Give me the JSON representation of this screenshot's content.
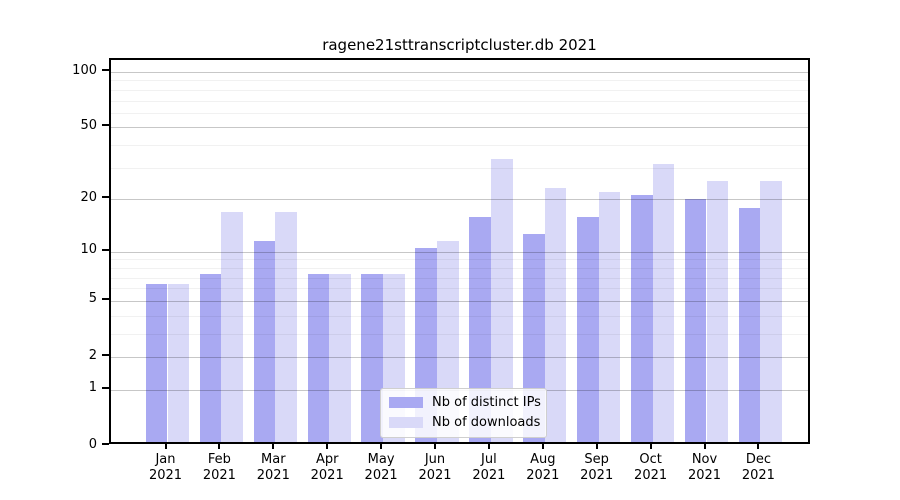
{
  "title": "ragene21sttranscriptcluster.db 2021",
  "chart_data": {
    "type": "bar",
    "title": "ragene21sttranscriptcluster.db 2021",
    "categories": [
      "Jan",
      "Feb",
      "Mar",
      "Apr",
      "May",
      "Jun",
      "Jul",
      "Aug",
      "Sep",
      "Oct",
      "Nov",
      "Dec"
    ],
    "x_year": "2021",
    "series": [
      {
        "name": "Nb of distinct IPs",
        "color": "#a9a9f2",
        "values": [
          6,
          7,
          11,
          7,
          7,
          10,
          15,
          12,
          15,
          20,
          19,
          17
        ]
      },
      {
        "name": "Nb of downloads",
        "color": "#d9d9f8",
        "values": [
          6,
          16,
          16,
          7,
          7,
          11,
          32,
          22,
          21,
          30,
          24,
          24
        ]
      }
    ],
    "yscale": "log10(1+x)",
    "ylim": [
      0,
      116
    ],
    "y_major_ticks": [
      0,
      1,
      2,
      5,
      10,
      20,
      50,
      100
    ],
    "y_minor_ticks": [
      3,
      4,
      6,
      7,
      8,
      9,
      30,
      40,
      60,
      70,
      80,
      90
    ],
    "grid": true,
    "legend_position": "lower center",
    "xlabel": "",
    "ylabel": ""
  },
  "colors": {
    "background": "#ffffff",
    "axis": "#000000",
    "bar_distinct_ips": "#a9a9f2",
    "bar_downloads": "#d9d9f8",
    "grid_major": "rgba(0,0,0,0.22)",
    "grid_minor": "rgba(0,0,0,0.055)"
  }
}
